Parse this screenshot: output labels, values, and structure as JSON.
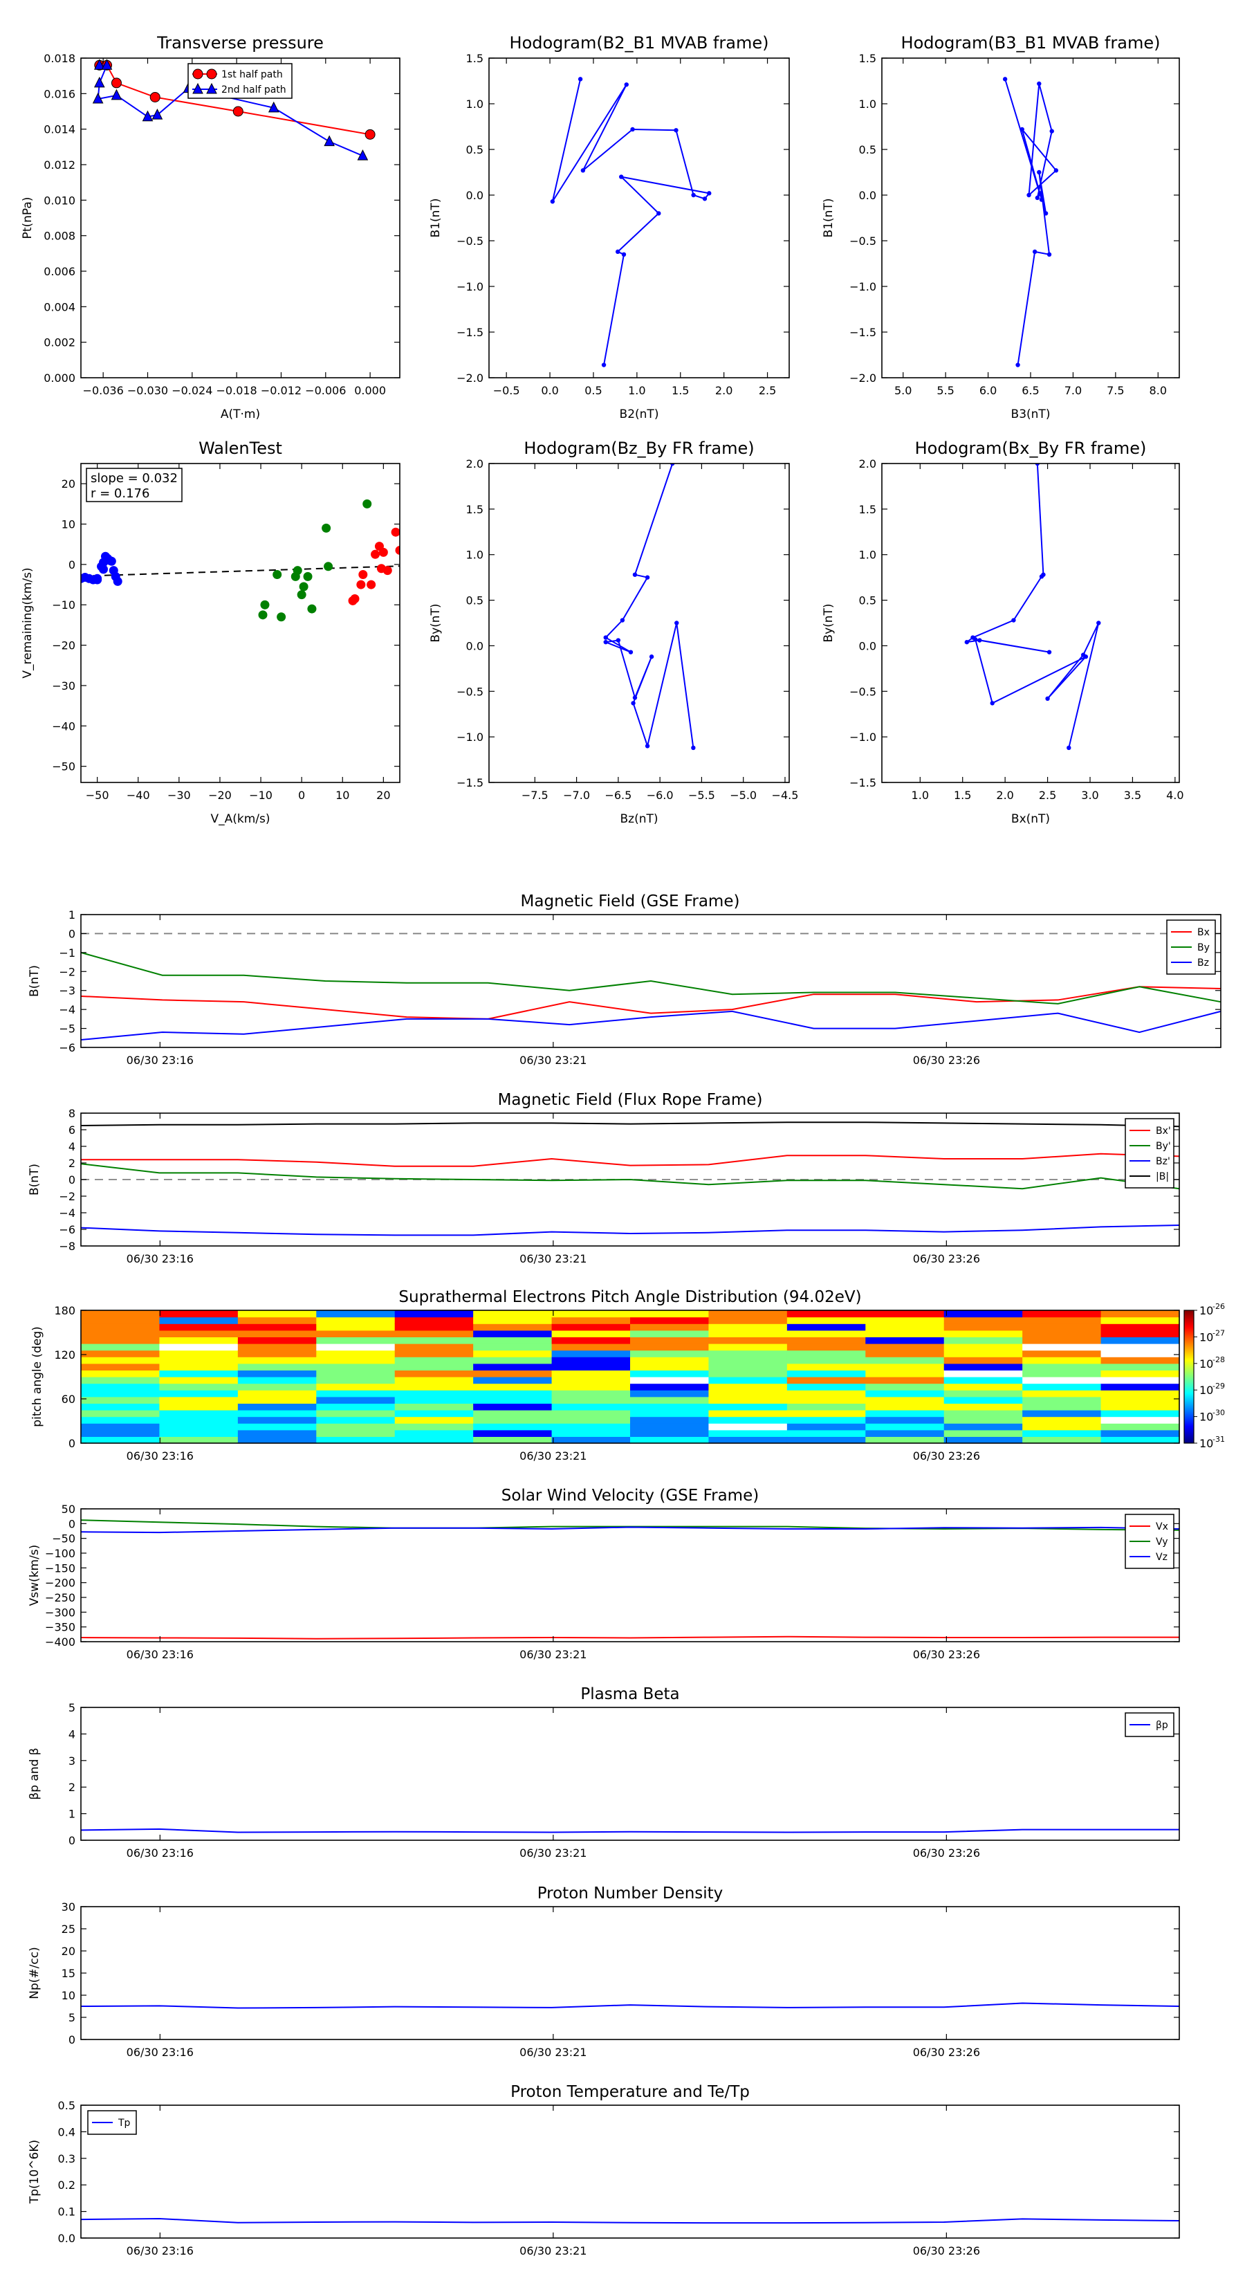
{
  "chart_data": [
    {
      "id": "transverse-pressure",
      "type": "line",
      "title": "Transverse pressure",
      "xlabel": "A(T·m)",
      "ylabel": "Pt(nPa)",
      "xlim": [
        -0.039,
        0.004
      ],
      "ylim": [
        0.0,
        0.018
      ],
      "xticks": [
        -0.036,
        -0.03,
        -0.024,
        -0.018,
        -0.012,
        -0.006,
        0.0
      ],
      "xtick_labels": [
        "−0.036",
        "−0.030",
        "−0.024",
        "−0.018",
        "−0.012",
        "−0.006",
        "0.000"
      ],
      "yticks": [
        0.0,
        0.002,
        0.004,
        0.006,
        0.008,
        0.01,
        0.012,
        0.014,
        0.016,
        0.018
      ],
      "ytick_labels": [
        "0.000",
        "0.002",
        "0.004",
        "0.006",
        "0.008",
        "0.010",
        "0.012",
        "0.014",
        "0.016",
        "0.018"
      ],
      "legend": "top-center",
      "series": [
        {
          "name": "1st half path",
          "color": "#ff0000",
          "marker": "circle",
          "x": [
            -0.0365,
            -0.0355,
            -0.0342,
            -0.029,
            -0.0178,
            0.0
          ],
          "y": [
            0.0176,
            0.0176,
            0.0166,
            0.0158,
            0.015,
            0.0137
          ]
        },
        {
          "name": "2nd half path",
          "color": "#0000ff",
          "marker": "triangle",
          "x": [
            -0.0365,
            -0.0355,
            -0.0365,
            -0.0367,
            -0.0342,
            -0.03,
            -0.0287,
            -0.0245,
            -0.013,
            -0.0055,
            -0.001
          ],
          "y": [
            0.0176,
            0.0176,
            0.0166,
            0.0157,
            0.0159,
            0.0147,
            0.0148,
            0.0163,
            0.0152,
            0.0133,
            0.0125
          ]
        }
      ]
    },
    {
      "id": "hodogram-b2-b1",
      "type": "line",
      "title": "Hodogram(B2_B1 MVAB frame)",
      "xlabel": "B2(nT)",
      "ylabel": "B1(nT)",
      "xlim": [
        -0.7,
        2.75
      ],
      "ylim": [
        -2.0,
        1.5
      ],
      "xticks": [
        -0.5,
        0.0,
        0.5,
        1.0,
        1.5,
        2.0,
        2.5
      ],
      "xtick_labels": [
        "−0.5",
        "0.0",
        "0.5",
        "1.0",
        "1.5",
        "2.0",
        "2.5"
      ],
      "yticks": [
        -2.0,
        -1.5,
        -1.0,
        -0.5,
        0.0,
        0.5,
        1.0,
        1.5
      ],
      "ytick_labels": [
        "−2.0",
        "−1.5",
        "−1.0",
        "−0.5",
        "0.0",
        "0.5",
        "1.0",
        "1.5"
      ],
      "series": [
        {
          "color": "#0000ff",
          "x": [
            0.35,
            0.03,
            0.88,
            0.38,
            0.95,
            1.45,
            1.65,
            1.78,
            1.83,
            0.82,
            1.25,
            0.78,
            0.85,
            0.62
          ],
          "y": [
            1.27,
            -0.07,
            1.21,
            0.27,
            0.72,
            0.71,
            0.0,
            -0.04,
            0.02,
            0.2,
            -0.2,
            -0.62,
            -0.65,
            -1.86
          ]
        }
      ]
    },
    {
      "id": "hodogram-b3-b1",
      "type": "line",
      "title": "Hodogram(B3_B1 MVAB frame)",
      "xlabel": "B3(nT)",
      "ylabel": "B1(nT)",
      "xlim": [
        4.75,
        8.25
      ],
      "ylim": [
        -2.0,
        1.5
      ],
      "xticks": [
        5.0,
        5.5,
        6.0,
        6.5,
        7.0,
        7.5,
        8.0
      ],
      "xtick_labels": [
        "5.0",
        "5.5",
        "6.0",
        "6.5",
        "7.0",
        "7.5",
        "8.0"
      ],
      "yticks": [
        -2.0,
        -1.5,
        -1.0,
        -0.5,
        0.0,
        0.5,
        1.0,
        1.5
      ],
      "ytick_labels": [
        "−2.0",
        "−1.5",
        "−1.0",
        "−0.5",
        "0.0",
        "0.5",
        "1.0",
        "1.5"
      ],
      "series": [
        {
          "color": "#0000ff",
          "x": [
            6.2,
            6.63,
            6.4,
            6.8,
            6.48,
            6.6,
            6.75,
            6.58,
            6.62,
            6.68,
            6.6,
            6.72,
            6.55,
            6.35
          ],
          "y": [
            1.27,
            -0.05,
            0.72,
            0.27,
            0.0,
            1.22,
            0.7,
            -0.03,
            0.02,
            -0.2,
            0.25,
            -0.65,
            -0.62,
            -1.86
          ]
        }
      ]
    },
    {
      "id": "walen-test",
      "type": "scatter",
      "title": "WalenTest",
      "xlabel": "V_A(km/s)",
      "ylabel": "V_remaining(km/s)",
      "annotation": [
        "slope = 0.032",
        "r = 0.176"
      ],
      "xlim": [
        -54,
        24
      ],
      "ylim": [
        -54,
        25
      ],
      "xticks": [
        -50,
        -40,
        -30,
        -20,
        -10,
        0,
        10,
        20
      ],
      "xtick_labels": [
        "−50",
        "−40",
        "−30",
        "−20",
        "−10",
        "0",
        "10",
        "20"
      ],
      "yticks": [
        -50,
        -40,
        -30,
        -20,
        -10,
        0,
        10,
        20
      ],
      "ytick_labels": [
        "−50",
        "−40",
        "−30",
        "−20",
        "−10",
        "0",
        "10",
        "20"
      ],
      "fit": {
        "slope": 0.032,
        "x": [
          -54,
          24
        ],
        "y": [
          -2.9,
          -0.4
        ]
      },
      "series": [
        {
          "color": "#0000ff",
          "x": [
            -54,
            -53,
            -52,
            -51,
            -50,
            -49,
            -48.5,
            -48,
            -47.5,
            -47,
            -46.5,
            -46,
            -45.5,
            -45,
            -48.5,
            -50
          ],
          "y": [
            -3.5,
            -3.2,
            -3.5,
            -3.8,
            -3.5,
            -0.5,
            0.5,
            2.0,
            1.5,
            1.0,
            0.8,
            -1.5,
            -3.0,
            -4.2,
            -1.2,
            -3.8
          ]
        },
        {
          "color": "#008000",
          "x": [
            -9.5,
            -9,
            -6,
            -5,
            -1.5,
            -1,
            0,
            0.5,
            1.5,
            2.5,
            6,
            6.5,
            16
          ],
          "y": [
            -12.5,
            -10,
            -2.5,
            -13,
            -3,
            -1.5,
            -7.5,
            -5.5,
            -3,
            -11,
            9,
            -0.5,
            15
          ]
        },
        {
          "color": "#ff0000",
          "x": [
            12.5,
            13,
            14.5,
            15,
            17,
            18,
            19,
            19.5,
            20,
            21,
            23,
            24
          ],
          "y": [
            -9,
            -8.5,
            -5,
            -2.5,
            -5,
            2.5,
            4.5,
            -1,
            3.0,
            -1.5,
            8,
            3.5
          ]
        }
      ]
    },
    {
      "id": "hodogram-bz-by",
      "type": "line",
      "title": "Hodogram(Bz_By FR frame)",
      "xlabel": "Bz(nT)",
      "ylabel": "By(nT)",
      "xlim": [
        -8.05,
        -4.45
      ],
      "ylim": [
        -1.5,
        2.0
      ],
      "xticks": [
        -7.5,
        -7.0,
        -6.5,
        -6.0,
        -5.5,
        -5.0,
        -4.5
      ],
      "xtick_labels": [
        "−7.5",
        "−7.0",
        "−6.5",
        "−6.0",
        "−5.5",
        "−5.0",
        "−4.5"
      ],
      "yticks": [
        -1.5,
        -1.0,
        -0.5,
        0.0,
        0.5,
        1.0,
        1.5,
        2.0
      ],
      "ytick_labels": [
        "−1.5",
        "−1.0",
        "−0.5",
        "0.0",
        "0.5",
        "1.0",
        "1.5",
        "2.0"
      ],
      "series": [
        {
          "color": "#0000ff",
          "x": [
            -5.85,
            -6.3,
            -6.15,
            -6.45,
            -6.65,
            -6.35,
            -6.65,
            -6.5,
            -6.3,
            -6.1,
            -6.32,
            -6.15,
            -5.8,
            -5.6
          ],
          "y": [
            2.0,
            0.78,
            0.75,
            0.28,
            0.09,
            -0.07,
            0.04,
            0.06,
            -0.57,
            -0.12,
            -0.63,
            -1.1,
            0.25,
            -1.12
          ]
        }
      ]
    },
    {
      "id": "hodogram-bx-by",
      "type": "line",
      "title": "Hodogram(Bx_By FR frame)",
      "xlabel": "Bx(nT)",
      "ylabel": "By(nT)",
      "xlim": [
        0.55,
        4.05
      ],
      "ylim": [
        -1.5,
        2.0
      ],
      "xticks": [
        1.0,
        1.5,
        2.0,
        2.5,
        3.0,
        3.5,
        4.0
      ],
      "xtick_labels": [
        "1.0",
        "1.5",
        "2.0",
        "2.5",
        "3.0",
        "3.5",
        "4.0"
      ],
      "yticks": [
        -1.5,
        -1.0,
        -0.5,
        0.0,
        0.5,
        1.0,
        1.5,
        2.0
      ],
      "ytick_labels": [
        "−1.5",
        "−1.0",
        "−0.5",
        "0.0",
        "0.5",
        "1.0",
        "1.5",
        "2.0"
      ],
      "series": [
        {
          "color": "#0000ff",
          "x": [
            2.38,
            2.45,
            2.43,
            2.1,
            1.62,
            1.55,
            1.7,
            2.52,
            1.65,
            1.85,
            2.95,
            2.5,
            2.92,
            3.1,
            2.75
          ],
          "y": [
            2.0,
            0.78,
            0.76,
            0.28,
            0.09,
            0.04,
            0.06,
            -0.07,
            0.07,
            -0.63,
            -0.12,
            -0.58,
            -0.1,
            0.25,
            -1.12
          ]
        }
      ]
    },
    {
      "id": "magnetic-field-gse",
      "type": "line",
      "title": "Magnetic Field (GSE Frame)",
      "ylabel": "B(nT)",
      "ylim": [
        -6,
        1
      ],
      "yticks": [
        -6,
        -5,
        -4,
        -3,
        -2,
        -1,
        0,
        1
      ],
      "ytick_labels": [
        "−6",
        "−5",
        "−4",
        "−3",
        "−2",
        "−1",
        "0",
        "1"
      ],
      "xtick_labels": [
        "06/30 23:16",
        "06/30 23:21",
        "06/30 23:26"
      ],
      "legend": "top-right",
      "zero_line": true,
      "series": [
        {
          "name": "Bx",
          "color": "#ff0000",
          "values": [
            -3.3,
            -3.5,
            -3.6,
            -4.0,
            -4.4,
            -4.5,
            -3.6,
            -4.2,
            -4.0,
            -3.2,
            -3.2,
            -3.6,
            -3.5,
            -2.8,
            -2.9
          ]
        },
        {
          "name": "By",
          "color": "#008000",
          "values": [
            -1.0,
            -2.2,
            -2.2,
            -2.5,
            -2.6,
            -2.6,
            -3.0,
            -2.5,
            -3.2,
            -3.1,
            -3.1,
            -3.4,
            -3.7,
            -2.8,
            -3.6
          ]
        },
        {
          "name": "Bz",
          "color": "#0000ff",
          "values": [
            -5.6,
            -5.2,
            -5.3,
            -4.9,
            -4.5,
            -4.5,
            -4.8,
            -4.4,
            -4.1,
            -5.0,
            -5.0,
            -4.6,
            -4.2,
            -5.2,
            -4.1
          ]
        }
      ]
    },
    {
      "id": "magnetic-field-fr",
      "type": "line",
      "title": "Magnetic Field (Flux Rope Frame)",
      "ylabel": "B(nT)",
      "ylim": [
        -8,
        8
      ],
      "yticks": [
        -8,
        -6,
        -4,
        -2,
        0,
        2,
        4,
        6,
        8
      ],
      "ytick_labels": [
        "−8",
        "−6",
        "−4",
        "−2",
        "0",
        "2",
        "4",
        "6",
        "8"
      ],
      "xtick_labels": [
        "06/30 23:16",
        "06/30 23:21",
        "06/30 23:26"
      ],
      "legend": "top-right",
      "zero_line": true,
      "series": [
        {
          "name": "Bx'",
          "color": "#ff0000",
          "values": [
            2.4,
            2.4,
            2.4,
            2.1,
            1.6,
            1.6,
            2.5,
            1.7,
            1.8,
            2.9,
            2.9,
            2.5,
            2.5,
            3.1,
            2.8
          ]
        },
        {
          "name": "By'",
          "color": "#008000",
          "values": [
            1.9,
            0.8,
            0.8,
            0.3,
            0.1,
            0.0,
            -0.1,
            0.0,
            -0.6,
            -0.1,
            -0.1,
            -0.6,
            -1.1,
            0.2,
            -1.1
          ]
        },
        {
          "name": "Bz'",
          "color": "#0000ff",
          "values": [
            -5.8,
            -6.2,
            -6.4,
            -6.6,
            -6.7,
            -6.7,
            -6.3,
            -6.5,
            -6.4,
            -6.1,
            -6.1,
            -6.3,
            -6.1,
            -5.7,
            -5.5
          ]
        },
        {
          "name": "|B|",
          "color": "#000000",
          "values": [
            6.5,
            6.6,
            6.6,
            6.7,
            6.7,
            6.8,
            6.8,
            6.7,
            6.8,
            6.9,
            6.9,
            6.8,
            6.7,
            6.6,
            6.4
          ]
        }
      ]
    },
    {
      "id": "pitch-angle",
      "type": "heatmap",
      "title": "Suprathermal Electrons Pitch Angle Distribution (94.02eV)",
      "ylabel": "pitch angle (deg)",
      "ylim": [
        0,
        180
      ],
      "yticks": [
        0,
        60,
        120,
        180
      ],
      "ytick_labels": [
        "0",
        "60",
        "120",
        "180"
      ],
      "xtick_labels": [
        "06/30 23:16",
        "06/30 23:21",
        "06/30 23:26"
      ],
      "colorbar_ticks": [
        "10-26",
        "10-27",
        "10-28",
        "10-29",
        "10-30",
        "10-31"
      ],
      "colorbar_exponents": [
        "-26",
        "-27",
        "-28",
        "-29",
        "-30",
        "-31"
      ],
      "rows": 20,
      "columns": 14
    },
    {
      "id": "solar-wind-velocity",
      "type": "line",
      "title": "Solar Wind Velocity (GSE Frame)",
      "ylabel": "Vsw(km/s)",
      "ylim": [
        -400,
        50
      ],
      "yticks": [
        -400,
        -350,
        -300,
        -250,
        -200,
        -150,
        -100,
        -50,
        0,
        50
      ],
      "ytick_labels": [
        "−400",
        "−350",
        "−300",
        "−250",
        "−200",
        "−150",
        "−100",
        "−50",
        "0",
        "50"
      ],
      "xtick_labels": [
        "06/30 23:16",
        "06/30 23:21",
        "06/30 23:26"
      ],
      "legend": "top-right",
      "series": [
        {
          "name": "Vx",
          "color": "#ff0000",
          "values": [
            -386,
            -387,
            -388,
            -390,
            -389,
            -387,
            -386,
            -387,
            -385,
            -383,
            -385,
            -386,
            -386,
            -385,
            -385
          ]
        },
        {
          "name": "Vy",
          "color": "#008000",
          "values": [
            12,
            5,
            -2,
            -10,
            -15,
            -15,
            -10,
            -10,
            -10,
            -10,
            -16,
            -18,
            -16,
            -20,
            -22
          ]
        },
        {
          "name": "Vz",
          "color": "#0000ff",
          "values": [
            -28,
            -30,
            -25,
            -20,
            -15,
            -15,
            -18,
            -12,
            -15,
            -18,
            -18,
            -14,
            -15,
            -13,
            -18
          ]
        }
      ]
    },
    {
      "id": "plasma-beta",
      "type": "line",
      "title": "Plasma Beta",
      "ylabel": "βp and β",
      "ylim": [
        0,
        5
      ],
      "yticks": [
        0,
        1,
        2,
        3,
        4,
        5
      ],
      "ytick_labels": [
        "0",
        "1",
        "2",
        "3",
        "4",
        "5"
      ],
      "xtick_labels": [
        "06/30 23:16",
        "06/30 23:21",
        "06/30 23:26"
      ],
      "legend": "top-right",
      "series": [
        {
          "name": "βp",
          "color": "#0000ff",
          "values": [
            0.38,
            0.42,
            0.3,
            0.31,
            0.32,
            0.31,
            0.3,
            0.32,
            0.31,
            0.3,
            0.31,
            0.31,
            0.4,
            0.4,
            0.4
          ]
        }
      ]
    },
    {
      "id": "proton-density",
      "type": "line",
      "title": "Proton Number Density",
      "ylabel": "Np(#/cc)",
      "ylim": [
        0,
        30
      ],
      "yticks": [
        0,
        5,
        10,
        15,
        20,
        25,
        30
      ],
      "ytick_labels": [
        "0",
        "5",
        "10",
        "15",
        "20",
        "25",
        "30"
      ],
      "xtick_labels": [
        "06/30 23:16",
        "06/30 23:21",
        "06/30 23:26"
      ],
      "series": [
        {
          "color": "#0000ff",
          "values": [
            7.5,
            7.6,
            7.1,
            7.2,
            7.4,
            7.3,
            7.2,
            7.8,
            7.4,
            7.2,
            7.3,
            7.3,
            8.2,
            7.8,
            7.5
          ]
        }
      ]
    },
    {
      "id": "proton-temperature",
      "type": "line",
      "title": "Proton Temperature and Te/Tp",
      "ylabel": "Tp(10^6K)",
      "ylim": [
        0,
        0.5
      ],
      "yticks": [
        0.0,
        0.1,
        0.2,
        0.3,
        0.4,
        0.5
      ],
      "ytick_labels": [
        "0.0",
        "0.1",
        "0.2",
        "0.3",
        "0.4",
        "0.5"
      ],
      "xtick_labels": [
        "06/30 23:16",
        "06/30 23:21",
        "06/30 23:26"
      ],
      "legend": "top-left",
      "series": [
        {
          "name": "Tp",
          "color": "#0000ff",
          "values": [
            0.07,
            0.073,
            0.058,
            0.06,
            0.061,
            0.059,
            0.06,
            0.058,
            0.057,
            0.057,
            0.058,
            0.06,
            0.072,
            0.068,
            0.065
          ]
        }
      ]
    }
  ]
}
